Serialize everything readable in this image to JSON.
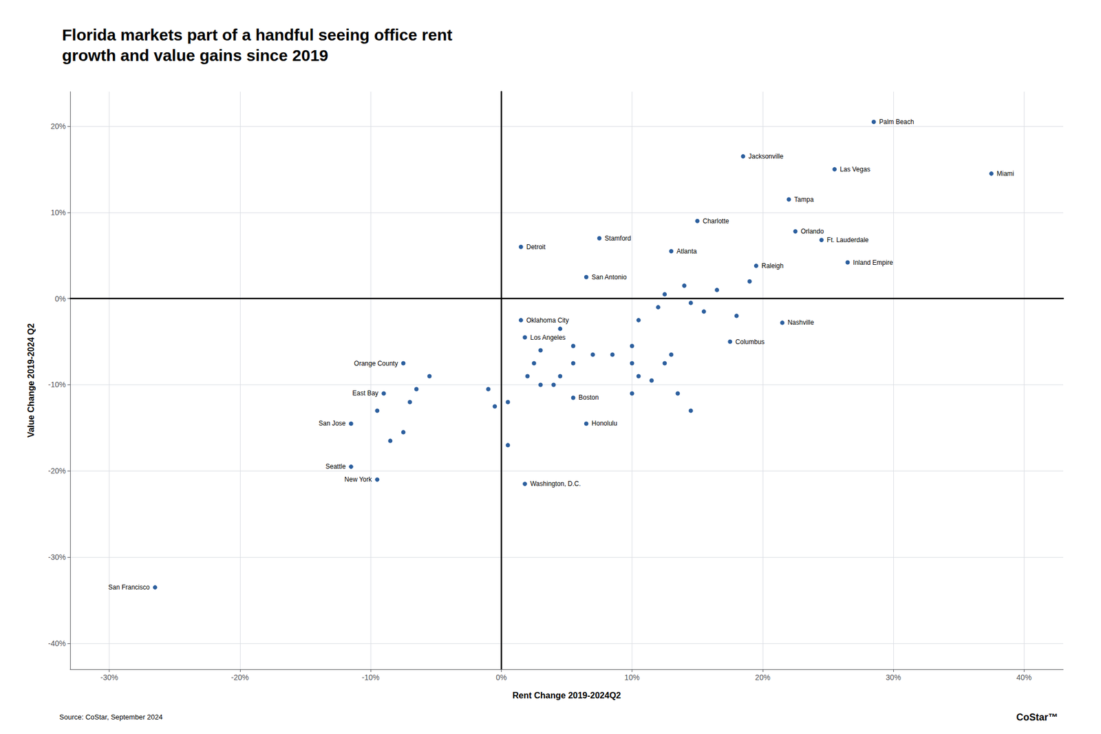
{
  "chart_data": {
    "type": "scatter",
    "title": "Florida markets part of a handful seeing office rent\ngrowth and value gains since 2019",
    "xlabel": "Rent Change 2019-2024Q2",
    "ylabel": "Value Change 2019-2024 Q2",
    "source": "Source: CoStar, September 2024",
    "annotations": [
      "CoStar™"
    ],
    "color": "#2c5f9e",
    "grid": true,
    "xlim": [
      -0.33,
      0.43
    ],
    "ylim": [
      -0.43,
      0.24
    ],
    "xticks": [
      {
        "value": -0.3,
        "label": "-30%"
      },
      {
        "value": -0.2,
        "label": "-20%"
      },
      {
        "value": -0.1,
        "label": "-10%"
      },
      {
        "value": 0.0,
        "label": "0%"
      },
      {
        "value": 0.1,
        "label": "10%"
      },
      {
        "value": 0.2,
        "label": "20%"
      },
      {
        "value": 0.3,
        "label": "30%"
      },
      {
        "value": 0.4,
        "label": "40%"
      }
    ],
    "yticks": [
      {
        "value": -0.4,
        "label": "-40%"
      },
      {
        "value": -0.3,
        "label": "-30%"
      },
      {
        "value": -0.2,
        "label": "-20%"
      },
      {
        "value": -0.1,
        "label": "-10%"
      },
      {
        "value": 0.0,
        "label": "0%"
      },
      {
        "value": 0.1,
        "label": "10%"
      },
      {
        "value": 0.2,
        "label": "20%"
      }
    ],
    "x": [
      0.045,
      0.055,
      0.07,
      0.085,
      0.1,
      0.1,
      0.105,
      0.1,
      0.115,
      0.125,
      0.13,
      0.135,
      0.145,
      0.055,
      0.045,
      0.04,
      0.03,
      0.02,
      0.025,
      0.03,
      0.105,
      0.12,
      0.125,
      0.14,
      0.145,
      0.155,
      0.165,
      0.18,
      0.19,
      -0.055,
      -0.065,
      -0.07,
      -0.075,
      -0.095,
      -0.085,
      -0.01,
      -0.005,
      0.005,
      0.005,
      0.285,
      0.185,
      0.255,
      0.375,
      0.22,
      0.15,
      0.225,
      0.245,
      0.13,
      0.195,
      0.265,
      0.015,
      0.075,
      0.065,
      0.015,
      0.018,
      0.215,
      0.175,
      0.055,
      0.065,
      0.018,
      -0.075,
      -0.09,
      -0.115,
      -0.115,
      -0.095,
      -0.265
    ],
    "values": [
      -0.035,
      -0.055,
      -0.065,
      -0.065,
      -0.055,
      -0.075,
      -0.09,
      -0.11,
      -0.095,
      -0.075,
      -0.065,
      -0.11,
      -0.13,
      -0.075,
      -0.09,
      -0.1,
      -0.1,
      -0.09,
      -0.075,
      -0.06,
      -0.025,
      -0.01,
      0.005,
      0.015,
      -0.005,
      -0.015,
      0.01,
      -0.02,
      0.02,
      -0.09,
      -0.105,
      -0.12,
      -0.155,
      -0.13,
      -0.165,
      -0.105,
      -0.125,
      -0.12,
      -0.17,
      0.205,
      0.165,
      0.15,
      0.145,
      0.115,
      0.09,
      0.078,
      0.068,
      0.055,
      0.038,
      0.042,
      0.06,
      0.07,
      0.025,
      -0.025,
      -0.045,
      -0.028,
      -0.05,
      -0.115,
      -0.145,
      -0.215,
      -0.075,
      -0.11,
      -0.145,
      -0.195,
      -0.21,
      -0.335
    ],
    "point_labels": [
      null,
      null,
      null,
      null,
      null,
      null,
      null,
      null,
      null,
      null,
      null,
      null,
      null,
      null,
      null,
      null,
      null,
      null,
      null,
      null,
      null,
      null,
      null,
      null,
      null,
      null,
      null,
      null,
      null,
      null,
      null,
      null,
      null,
      null,
      null,
      null,
      null,
      null,
      null,
      "Palm Beach",
      "Jacksonville",
      "Las Vegas",
      "Miami",
      "Tampa",
      "Charlotte",
      "Orlando",
      "Ft. Lauderdale",
      "Atlanta",
      "Raleigh",
      "Inland Empire",
      "Detroit",
      "Stamford",
      "San Antonio",
      "Oklahoma City",
      "Los Angeles",
      "Nashville",
      "Columbus",
      "Boston",
      "Honolulu",
      "Washington, D.C.",
      "Orange County",
      "East Bay",
      "San Jose",
      "Seattle",
      "New York",
      "San Francisco"
    ]
  }
}
